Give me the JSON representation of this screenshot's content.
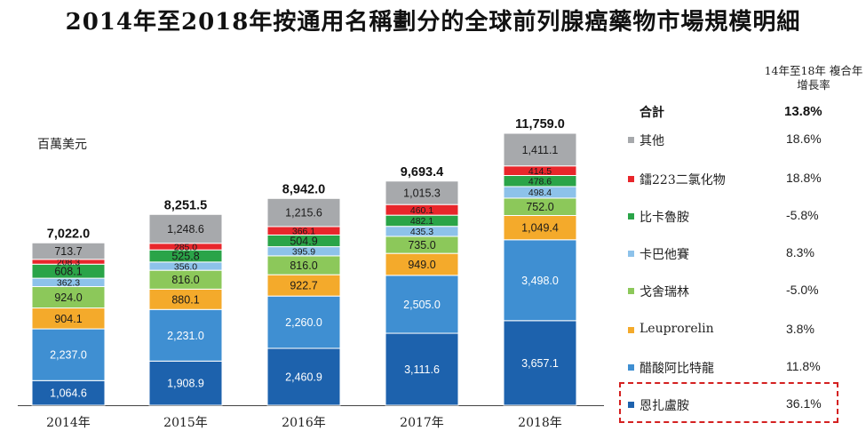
{
  "title": "2014年至2018年按通用名稱劃分的全球前列腺癌藥物市場規模明細",
  "unit_label": "百萬美元",
  "legend": {
    "header": "14年至18年 複合年增長率",
    "total_label": "合計",
    "total_value": "13.8%",
    "items": [
      {
        "label": "其他",
        "value": "18.6%",
        "color": "#a7a9ac"
      },
      {
        "label": "鐳223二氯化物",
        "value": "18.8%",
        "color": "#e8262b"
      },
      {
        "label": "比卡魯胺",
        "value": "-5.8%",
        "color": "#2aa448"
      },
      {
        "label": "卡巴他賽",
        "value": "8.3%",
        "color": "#8dc2ea"
      },
      {
        "label": "戈舍瑞林",
        "value": "-5.0%",
        "color": "#8cc85a"
      },
      {
        "label": "Leuprorelin",
        "value": "3.8%",
        "color": "#f4aa2b"
      },
      {
        "label": "醋酸阿比特龍",
        "value": "11.8%",
        "color": "#3f8fd2"
      },
      {
        "label": "恩扎盧胺",
        "value": "36.1%",
        "color": "#1d62ad"
      }
    ]
  },
  "chart_data": {
    "type": "bar",
    "stacked": true,
    "categories": [
      "2014年",
      "2015年",
      "2016年",
      "2017年",
      "2018年"
    ],
    "totals": [
      "7,022.0",
      "8,251.5",
      "8,942.0",
      "9,693.4",
      "11,759.0"
    ],
    "total_values": [
      7022.0,
      8251.5,
      8942.0,
      9693.4,
      11759.0
    ],
    "series": [
      {
        "name": "恩扎盧胺",
        "color": "#1d62ad",
        "values": [
          1064.6,
          1908.9,
          2460.9,
          3111.6,
          3657.1
        ],
        "labels": [
          "1,064.6",
          "1,908.9",
          "2,460.9",
          "3,111.6",
          "3,657.1"
        ]
      },
      {
        "name": "醋酸阿比特龍",
        "color": "#3f8fd2",
        "values": [
          2237.0,
          2231.0,
          2260.0,
          2505.0,
          3498.0
        ],
        "labels": [
          "2,237.0",
          "2,231.0",
          "2,260.0",
          "2,505.0",
          "3,498.0"
        ]
      },
      {
        "name": "Leuprorelin",
        "color": "#f4aa2b",
        "values": [
          904.1,
          880.1,
          922.7,
          949.0,
          1049.4
        ],
        "labels": [
          "904.1",
          "880.1",
          "922.7",
          "949.0",
          "1,049.4"
        ]
      },
      {
        "name": "戈舍瑞林",
        "color": "#8cc85a",
        "values": [
          924.0,
          816.0,
          816.0,
          735.0,
          752.0
        ],
        "labels": [
          "924.0",
          "816.0",
          "816.0",
          "735.0",
          "752.0"
        ]
      },
      {
        "name": "卡巴他賽",
        "color": "#8dc2ea",
        "values": [
          362.3,
          356.0,
          395.9,
          435.3,
          498.4
        ],
        "labels": [
          "362.3",
          "356.0",
          "395.9",
          "435.3",
          "498.4"
        ]
      },
      {
        "name": "比卡魯胺",
        "color": "#2aa448",
        "values": [
          608.1,
          525.8,
          504.9,
          482.1,
          478.6
        ],
        "labels": [
          "608.1",
          "525.8",
          "504.9",
          "482.1",
          "478.6"
        ]
      },
      {
        "name": "鐳223二氯化物",
        "color": "#e8262b",
        "values": [
          208.3,
          285.0,
          366.1,
          460.1,
          414.5
        ],
        "labels": [
          "208.3",
          "285.0",
          "366.1",
          "460.1",
          "414.5"
        ]
      },
      {
        "name": "其他",
        "color": "#a7a9ac",
        "values": [
          713.7,
          1248.6,
          1215.6,
          1015.3,
          1411.1
        ],
        "labels": [
          "713.7",
          "1,248.6",
          "1,215.6",
          "1,015.3",
          "1,411.1"
        ]
      }
    ],
    "highlighted_series": "恩扎盧胺"
  }
}
